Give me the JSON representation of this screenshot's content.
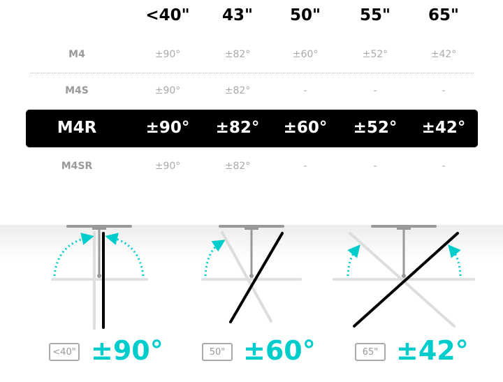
{
  "table": {
    "columns": [
      "<40\"",
      "43\"",
      "50\"",
      "55\"",
      "65\""
    ],
    "rows": [
      {
        "model": "M4",
        "values": [
          "±90°",
          "±82°",
          "±60°",
          "±52°",
          "±42°"
        ],
        "highlighted": false
      },
      {
        "model": "M4S",
        "values": [
          "±90°",
          "±82°",
          "-",
          "-",
          "-"
        ],
        "highlighted": false
      },
      {
        "model": "M4R",
        "values": [
          "±90°",
          "±82°",
          "±60°",
          "±52°",
          "±42°"
        ],
        "highlighted": true
      },
      {
        "model": "M4SR",
        "values": [
          "±90°",
          "±82°",
          "-",
          "-",
          "-"
        ],
        "highlighted": false
      }
    ]
  },
  "diagrams": [
    {
      "size": "<40\"",
      "angle": "±90°"
    },
    {
      "size": "50\"",
      "angle": "±60°"
    },
    {
      "size": "65\"",
      "angle": "±42°"
    }
  ],
  "colors": {
    "accent": "#00cccc",
    "highlight_band": "#000000",
    "muted_text": "#aaaaaa"
  }
}
